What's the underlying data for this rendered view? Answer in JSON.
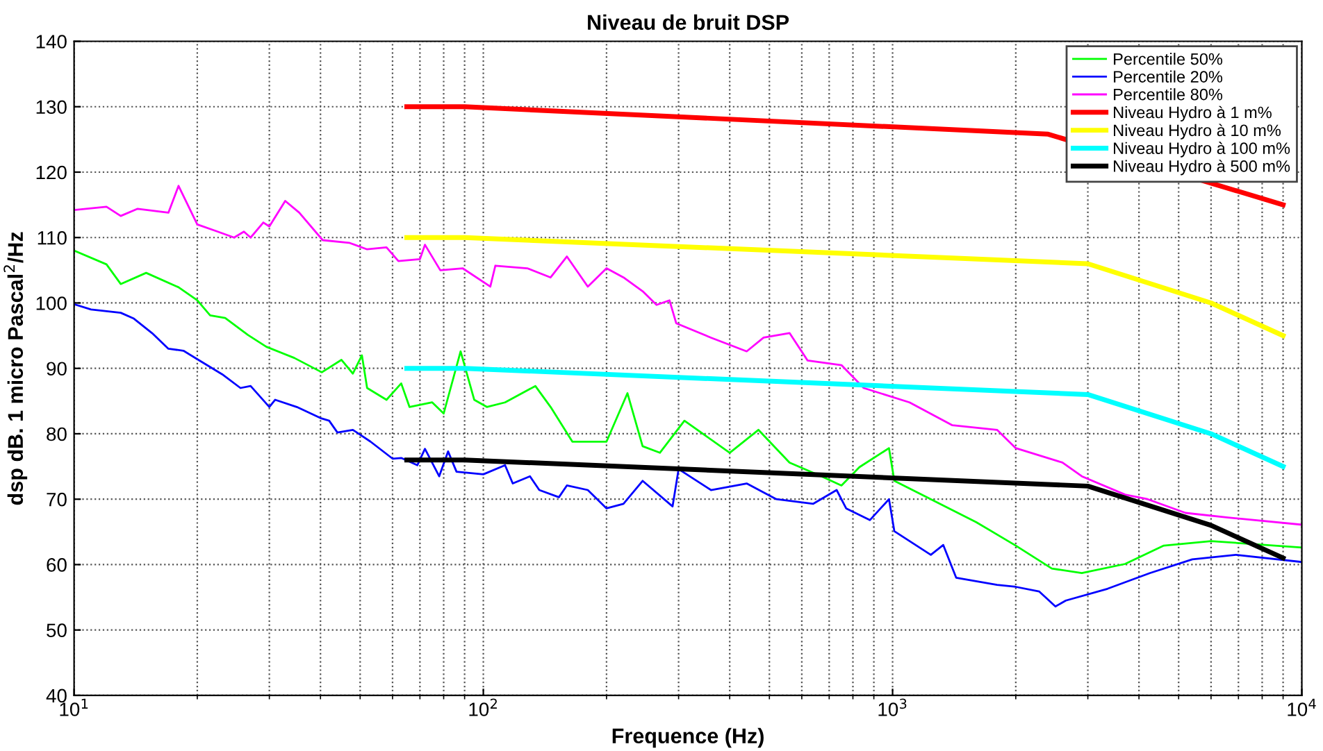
{
  "chart_data": {
    "type": "line",
    "title": "Niveau de bruit DSP",
    "xlabel": "Frequence (Hz)",
    "ylabel": "dsp dB. 1 micro Pascal$^{2}$/Hz",
    "log": "x",
    "grid": true,
    "legend": "top right",
    "xlim": [
      10,
      10000
    ],
    "xticks": [
      {
        "value": 10,
        "label": "10$^{1}$"
      },
      {
        "value": 100,
        "label": "10$^{2}$"
      },
      {
        "value": 1000,
        "label": "10$^{3}$"
      },
      {
        "value": 10000,
        "label": "10$^{4}$"
      }
    ],
    "ylim": [
      40,
      140
    ],
    "yticks": [
      40,
      50,
      60,
      70,
      80,
      90,
      100,
      110,
      120,
      130,
      140
    ],
    "series": [
      {
        "name": "Percentile 50%",
        "color": "#00ff00",
        "x": [
          10,
          12,
          13,
          15,
          18,
          20,
          21.5,
          23.4,
          26.6,
          29.5,
          34.5,
          40.3,
          45,
          48,
          50.5,
          52,
          58,
          63,
          66,
          75,
          80,
          88,
          95,
          102,
          113,
          134,
          146,
          165,
          200,
          225,
          245,
          270,
          310,
          400,
          470,
          560,
          670,
          750,
          830,
          980,
          1010,
          1240,
          1600,
          2000,
          2450,
          2900,
          3700,
          4600,
          6000,
          10000
        ],
        "values": [
          108,
          105.9,
          102.9,
          104.6,
          102.4,
          100.4,
          98.1,
          97.7,
          95.1,
          93.3,
          91.6,
          89.4,
          91.3,
          89.2,
          92,
          87,
          85.2,
          87.7,
          84.1,
          84.8,
          83.1,
          92.6,
          85.2,
          84.1,
          84.8,
          87.3,
          84.1,
          78.8,
          78.8,
          86.2,
          78.1,
          77.1,
          82,
          77.1,
          80.6,
          75.6,
          73.5,
          72.1,
          74.9,
          77.8,
          72.8,
          70,
          66.5,
          62.9,
          59.4,
          58.7,
          60.1,
          62.9,
          63.6,
          62.6
        ]
      },
      {
        "name": "Percentile 20%",
        "color": "#0000ff",
        "x": [
          10,
          11,
          13,
          14,
          15.5,
          17,
          18.5,
          20,
          23,
          25.5,
          27,
          30,
          31,
          35,
          40,
          42,
          44,
          48,
          53,
          60,
          63,
          69,
          72,
          78,
          82,
          86,
          100,
          113,
          118,
          130,
          137,
          153,
          160,
          180,
          200,
          220,
          245,
          290,
          300,
          360,
          440,
          520,
          640,
          730,
          770,
          880,
          980,
          1010,
          1240,
          1330,
          1430,
          1800,
          2000,
          2280,
          2500,
          2650,
          3350,
          4250,
          5400,
          6900,
          10000
        ],
        "values": [
          99.8,
          99,
          98.5,
          97.6,
          95.4,
          93,
          92.7,
          91.4,
          89.1,
          87,
          87.3,
          84.1,
          85.2,
          84.1,
          82.4,
          82,
          80.2,
          80.6,
          78.8,
          76.2,
          76.3,
          75.2,
          77.7,
          73.5,
          77.3,
          74.2,
          73.8,
          75.2,
          72.4,
          73.5,
          71.4,
          70.3,
          72.1,
          71.4,
          68.6,
          69.3,
          72.8,
          68.9,
          74.6,
          71.4,
          72.4,
          70,
          69.3,
          71.4,
          68.6,
          66.8,
          70,
          65.1,
          61.5,
          63,
          58,
          56.9,
          56.6,
          55.9,
          53.6,
          54.5,
          56.3,
          58.7,
          60.8,
          61.5,
          60.4
        ]
      },
      {
        "name": "Percentile 80%",
        "color": "#ff00ff",
        "x": [
          10,
          12,
          13,
          14.3,
          17,
          18,
          20,
          22.2,
          24.6,
          26,
          27,
          29,
          30,
          32.8,
          35.5,
          40.5,
          47,
          52,
          58,
          62,
          70,
          72,
          78.5,
          89,
          104,
          107,
          128,
          146,
          160,
          180,
          200,
          220,
          245,
          265,
          285,
          296,
          360,
          440,
          484,
          560,
          620,
          750,
          850,
          1100,
          1400,
          1800,
          2000,
          2600,
          2900,
          3700,
          4200,
          5200,
          6600,
          10000
        ],
        "values": [
          114.2,
          114.7,
          113.3,
          114.4,
          113.8,
          117.9,
          112,
          111,
          110,
          110.9,
          110,
          112.3,
          111.7,
          115.6,
          113.8,
          109.6,
          109.2,
          108.2,
          108.5,
          106.4,
          106.7,
          108.9,
          105,
          105.3,
          102.5,
          105.7,
          105.3,
          103.9,
          107.1,
          102.5,
          105.3,
          103.9,
          101.8,
          99.7,
          100.4,
          96.9,
          94.7,
          92.6,
          94.7,
          95.4,
          91.2,
          90.5,
          87,
          84.8,
          81.3,
          80.6,
          77.8,
          75.6,
          73.5,
          70.7,
          70,
          67.9,
          67.2,
          66.1
        ]
      },
      {
        "name": "Niveau Hydro à 1 m%",
        "color": "#ff0000",
        "x": [
          65,
          90,
          2400,
          9000
        ],
        "values": [
          130,
          130,
          125.8,
          115
        ]
      },
      {
        "name": "Niveau Hydro à 10 m%",
        "color": "#ffff00",
        "x": [
          65,
          90,
          3000,
          6000,
          9000
        ],
        "values": [
          110,
          110,
          106,
          100,
          95
        ]
      },
      {
        "name": "Niveau Hydro à 100 m%",
        "color": "#00ffff",
        "x": [
          65,
          90,
          3000,
          6000,
          9000
        ],
        "values": [
          90,
          90,
          86,
          80,
          75
        ]
      },
      {
        "name": "Niveau Hydro à 500 m%",
        "color": "#000000",
        "x": [
          65,
          90,
          3000,
          6000,
          9000
        ],
        "values": [
          76,
          76,
          72,
          66,
          61
        ]
      }
    ]
  }
}
